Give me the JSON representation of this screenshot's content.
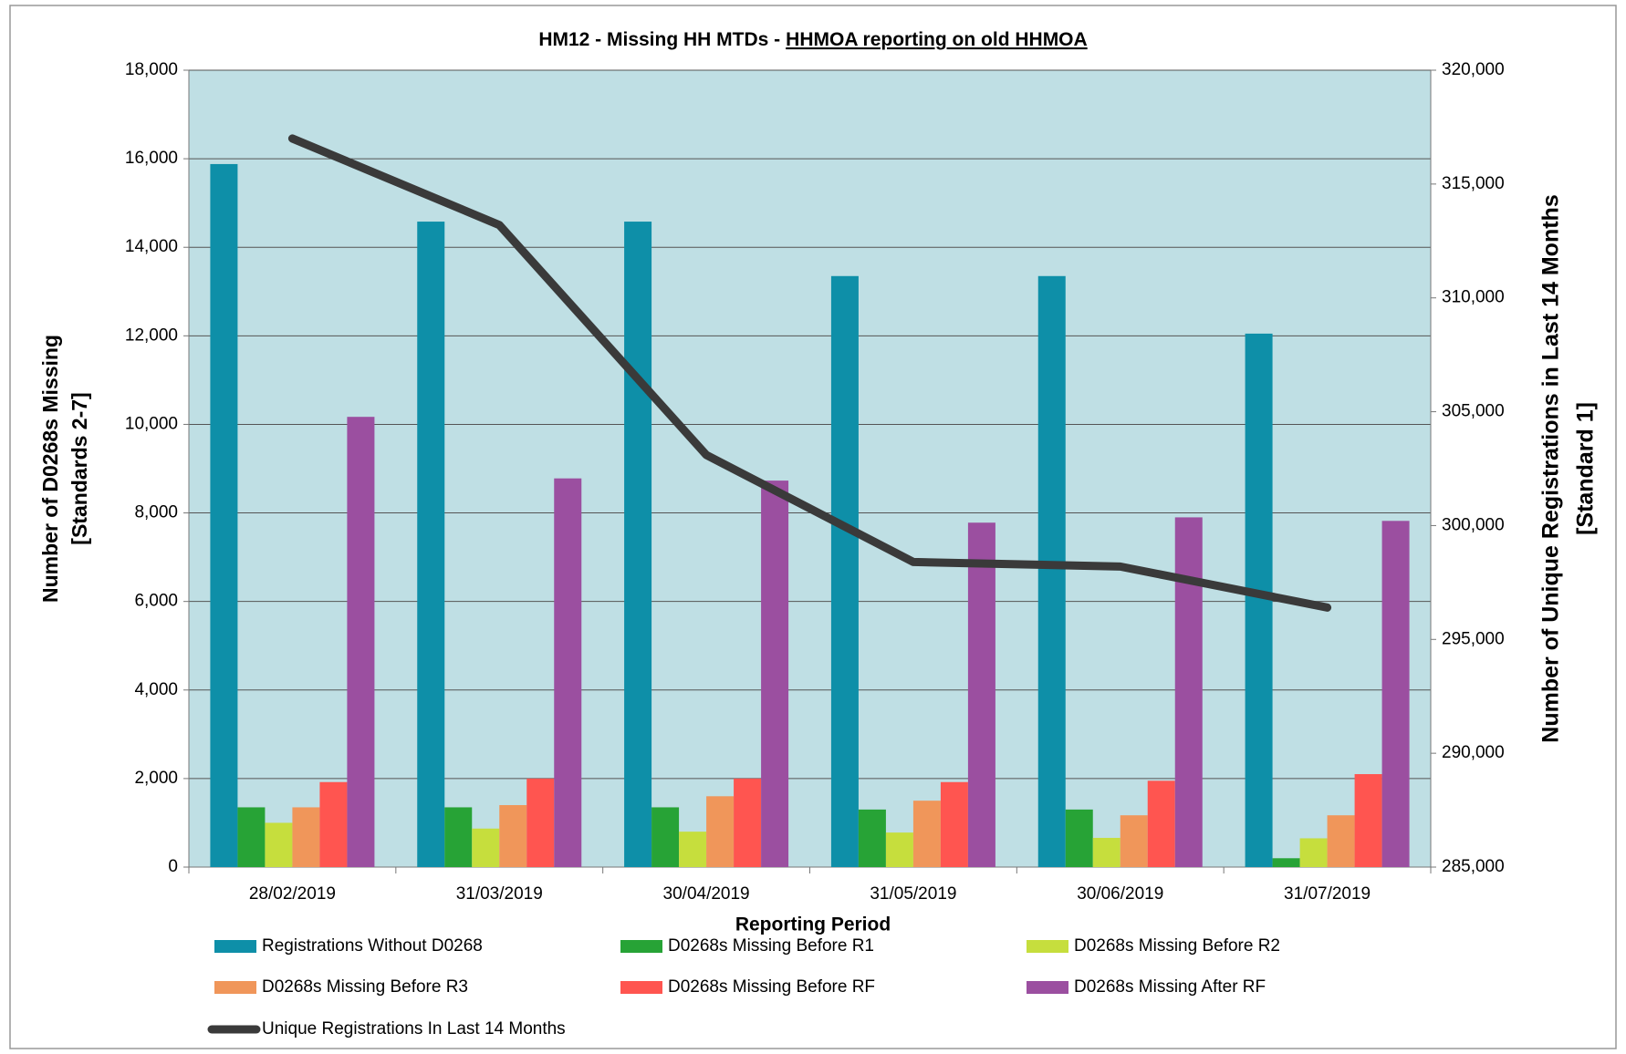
{
  "chart_data": {
    "type": "bar",
    "title": {
      "plain": "HM12 - Missing HH MTDs -",
      "underlined": "HHMOA reporting on old HHMOA"
    },
    "x_label": "Reporting Period",
    "y_label": [
      "Number of D0268s Missing",
      "[Standards 2-7]"
    ],
    "y2_label": [
      "Number of Unique Registrations in Last 14 Months",
      "[Standard 1]"
    ],
    "categories": [
      "28/02/2019",
      "31/03/2019",
      "30/04/2019",
      "31/05/2019",
      "30/06/2019",
      "31/07/2019"
    ],
    "series": [
      {
        "name": "Registrations Without D0268",
        "color": "#0e8fa8",
        "values": [
          15880,
          14580,
          14580,
          13350,
          13350,
          12050
        ]
      },
      {
        "name": "D0268s Missing Before R1",
        "color": "#27a336",
        "values": [
          1350,
          1350,
          1350,
          1300,
          1300,
          200
        ]
      },
      {
        "name": "D0268s Missing Before R2",
        "color": "#c6de3d",
        "values": [
          1000,
          870,
          800,
          780,
          660,
          650
        ]
      },
      {
        "name": "D0268s Missing Before R3",
        "color": "#f0965a",
        "values": [
          1350,
          1400,
          1600,
          1500,
          1170,
          1170
        ]
      },
      {
        "name": "D0268s Missing Before RF",
        "color": "#ff5550",
        "values": [
          1920,
          2000,
          2000,
          1920,
          1950,
          2100
        ]
      },
      {
        "name": "D0268s Missing After RF",
        "color": "#9b4fa0",
        "values": [
          10170,
          8780,
          8730,
          7780,
          7900,
          7820
        ]
      },
      {
        "name": "Unique Registrations In Last 14 Months",
        "color": "#3a3a3a",
        "type": "line",
        "axis": "y2",
        "values": [
          317000,
          313200,
          303100,
          298400,
          298200,
          296400
        ]
      }
    ],
    "ylim": [
      0,
      18000
    ],
    "yticks": [
      0,
      {
        "value": 2000,
        "label": "2,000"
      },
      {
        "value": 4000,
        "label": "4,000"
      },
      {
        "value": 6000,
        "label": "6,000"
      },
      {
        "value": 8000,
        "label": "8,000"
      },
      {
        "value": 10000,
        "label": "10,000"
      },
      {
        "value": 12000,
        "label": "12,000"
      },
      {
        "value": 14000,
        "label": "14,000"
      },
      {
        "value": 16000,
        "label": "16,000"
      },
      {
        "value": 18000,
        "label": "18,000"
      }
    ],
    "y2lim": [
      285000,
      320000
    ],
    "y2ticks": [
      {
        "value": 285000,
        "label": "285,000"
      },
      {
        "value": 290000,
        "label": "290,000"
      },
      {
        "value": 295000,
        "label": "295,000"
      },
      {
        "value": 300000,
        "label": "300,000"
      },
      {
        "value": 305000,
        "label": "305,000"
      },
      {
        "value": 310000,
        "label": "310,000"
      },
      {
        "value": 315000,
        "label": "315,000"
      },
      {
        "value": 320000,
        "label": "320,000"
      }
    ],
    "grid": true,
    "plot_background": "#bfdfe4",
    "legend": "bottom"
  }
}
